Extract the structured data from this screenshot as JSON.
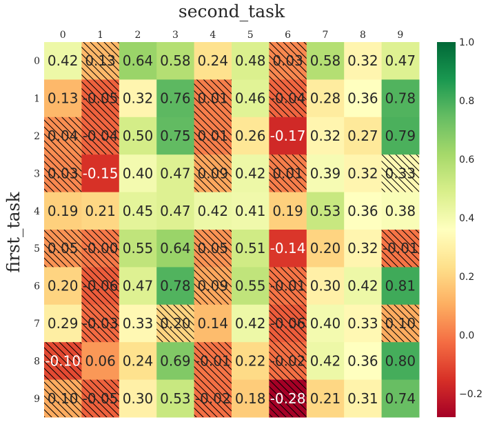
{
  "chart_data": {
    "type": "heatmap",
    "title": "second_task",
    "xlabel": "",
    "ylabel": "first_task",
    "x_categories": [
      "0",
      "1",
      "2",
      "3",
      "4",
      "5",
      "6",
      "7",
      "8",
      "9"
    ],
    "y_categories": [
      "0",
      "1",
      "2",
      "3",
      "4",
      "5",
      "6",
      "7",
      "8",
      "9"
    ],
    "values": [
      [
        "0.42",
        "0.13",
        "0.64",
        "0.58",
        "0.24",
        "0.48",
        "0.03",
        "0.58",
        "0.32",
        "0.47"
      ],
      [
        "0.13",
        "-0.05",
        "0.32",
        "0.76",
        "0.01",
        "0.46",
        "-0.04",
        "0.28",
        "0.36",
        "0.78"
      ],
      [
        "0.04",
        "-0.04",
        "0.50",
        "0.75",
        "0.01",
        "0.26",
        "-0.17",
        "0.32",
        "0.27",
        "0.79"
      ],
      [
        "0.03",
        "-0.15",
        "0.40",
        "0.47",
        "0.09",
        "0.42",
        "0.01",
        "0.39",
        "0.32",
        "0.33"
      ],
      [
        "0.19",
        "0.21",
        "0.45",
        "0.47",
        "0.42",
        "0.41",
        "0.19",
        "0.53",
        "0.36",
        "0.38"
      ],
      [
        "0.05",
        "-0.00",
        "0.55",
        "0.64",
        "0.05",
        "0.51",
        "-0.14",
        "0.20",
        "0.32",
        "-0.01"
      ],
      [
        "0.20",
        "-0.06",
        "0.47",
        "0.78",
        "0.09",
        "0.55",
        "-0.01",
        "0.30",
        "0.42",
        "0.81"
      ],
      [
        "0.29",
        "-0.03",
        "0.33",
        "0.20",
        "0.14",
        "0.42",
        "-0.06",
        "0.40",
        "0.33",
        "0.10"
      ],
      [
        "-0.10",
        "0.06",
        "0.24",
        "0.69",
        "-0.01",
        "0.22",
        "-0.02",
        "0.42",
        "0.36",
        "0.80"
      ],
      [
        "0.10",
        "-0.05",
        "0.30",
        "0.53",
        "-0.02",
        "0.18",
        "-0.28",
        "0.21",
        "0.31",
        "0.74"
      ]
    ],
    "hatched": [
      [
        0,
        1,
        0,
        0,
        0,
        0,
        1,
        0,
        0,
        0
      ],
      [
        0,
        1,
        0,
        0,
        1,
        0,
        1,
        0,
        0,
        0
      ],
      [
        1,
        1,
        0,
        0,
        1,
        0,
        0,
        0,
        0,
        0
      ],
      [
        1,
        0,
        0,
        0,
        1,
        0,
        1,
        0,
        0,
        1
      ],
      [
        0,
        0,
        0,
        0,
        0,
        0,
        0,
        0,
        0,
        0
      ],
      [
        1,
        1,
        0,
        0,
        1,
        0,
        0,
        0,
        0,
        1
      ],
      [
        0,
        1,
        0,
        0,
        1,
        0,
        1,
        0,
        0,
        0
      ],
      [
        0,
        1,
        0,
        1,
        0,
        0,
        1,
        0,
        0,
        1
      ],
      [
        1,
        0,
        0,
        0,
        1,
        0,
        1,
        0,
        0,
        0
      ],
      [
        1,
        1,
        0,
        0,
        1,
        0,
        1,
        0,
        0,
        0
      ]
    ],
    "colorbar": {
      "colormap": "RdYlGn",
      "vmin": -0.28,
      "vmax": 1.0,
      "ticks": [
        "1.0",
        "0.8",
        "0.6",
        "0.4",
        "0.2",
        "0.0",
        "−0.2"
      ]
    }
  }
}
